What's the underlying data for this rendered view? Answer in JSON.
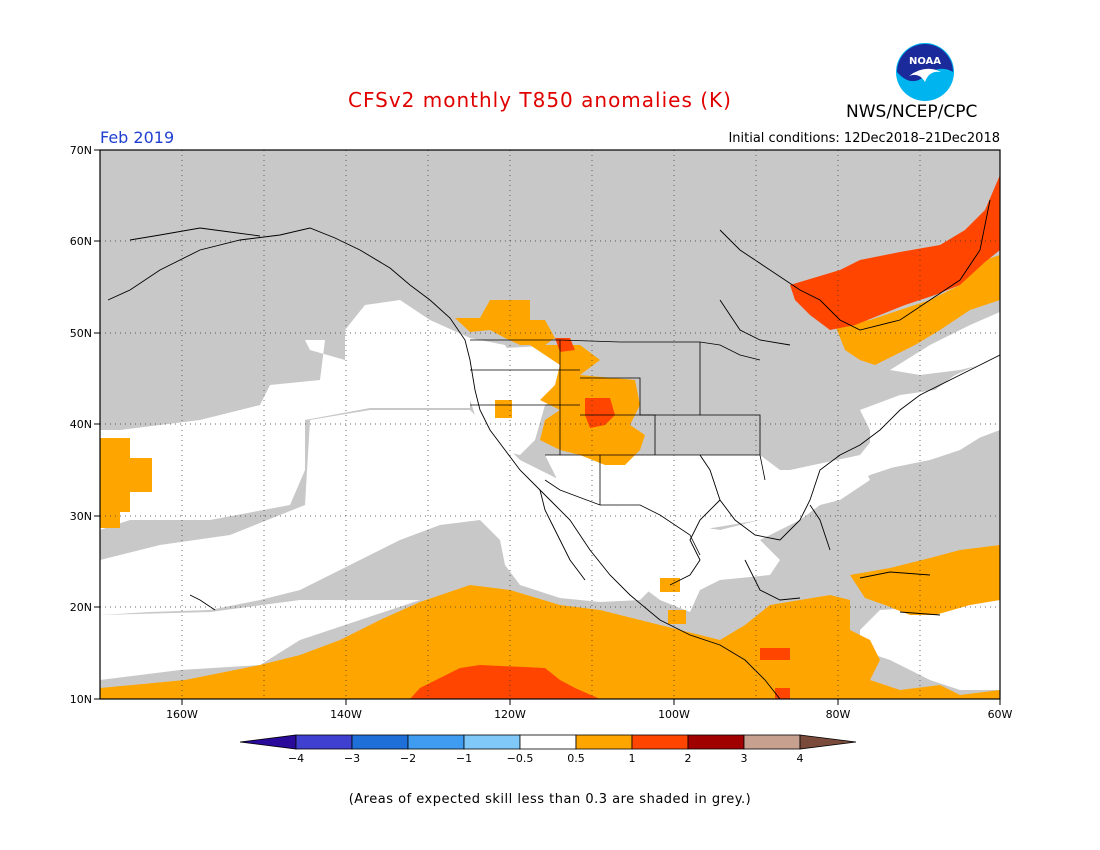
{
  "header": {
    "title": "CFSv2 monthly T850 anomalies (K)",
    "month": "Feb 2019",
    "initial_conditions": "Initial conditions: 12Dec2018–21Dec2018",
    "agency": "NWS/NCEP/CPC",
    "logo_text": "NOAA"
  },
  "axes": {
    "lat_labels": [
      "70N",
      "60N",
      "50N",
      "40N",
      "30N",
      "20N",
      "10N"
    ],
    "lon_labels": [
      "160W",
      "140W",
      "120W",
      "100W",
      "80W",
      "60W"
    ]
  },
  "colorbar": {
    "labels": [
      "−4",
      "−3",
      "−2",
      "−1",
      "−0.5",
      "0.5",
      "1",
      "2",
      "3",
      "4"
    ],
    "colors": [
      "#2a0a9a",
      "#3f3fd0",
      "#1f6fd8",
      "#3f9cf0",
      "#80c8f8",
      "#ffffff",
      "#ffa500",
      "#ff4500",
      "#a00000",
      "#c8a090",
      "#7a4a3a"
    ]
  },
  "legend_colors": {
    "low_skill": "#c8c8c8",
    "near_normal": "#ffffff",
    "anom_0_5_1": "#ffa500",
    "anom_1_2": "#ff4500"
  },
  "caption": "(Areas of expected skill less than 0.3 are shaded in grey.)"
}
